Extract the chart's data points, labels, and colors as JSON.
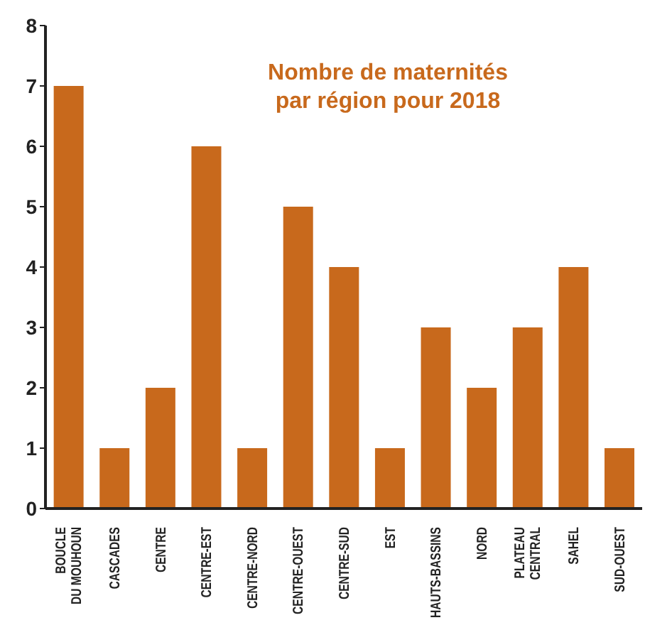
{
  "chart_data": {
    "type": "bar",
    "title": "Nombre de maternités par région pour 2018",
    "categories": [
      "BOUCLE DU MOUHOUN",
      "CASCADES",
      "CENTRE",
      "CENTRE-EST",
      "CENTRE-NORD",
      "CENTRE-OUEST",
      "CENTRE-SUD",
      "EST",
      "HAUTS-BASSINS",
      "NORD",
      "PLATEAU CENTRAL",
      "SAHEL",
      "SUD-OUEST"
    ],
    "values": [
      7,
      1,
      2,
      6,
      1,
      5,
      4,
      1,
      3,
      2,
      3,
      4,
      1
    ],
    "color": "#c8691c",
    "ylim": [
      0,
      8
    ],
    "yticks": [
      0,
      1,
      2,
      3,
      4,
      5,
      6,
      7,
      8
    ],
    "grid": false,
    "legend": false
  }
}
